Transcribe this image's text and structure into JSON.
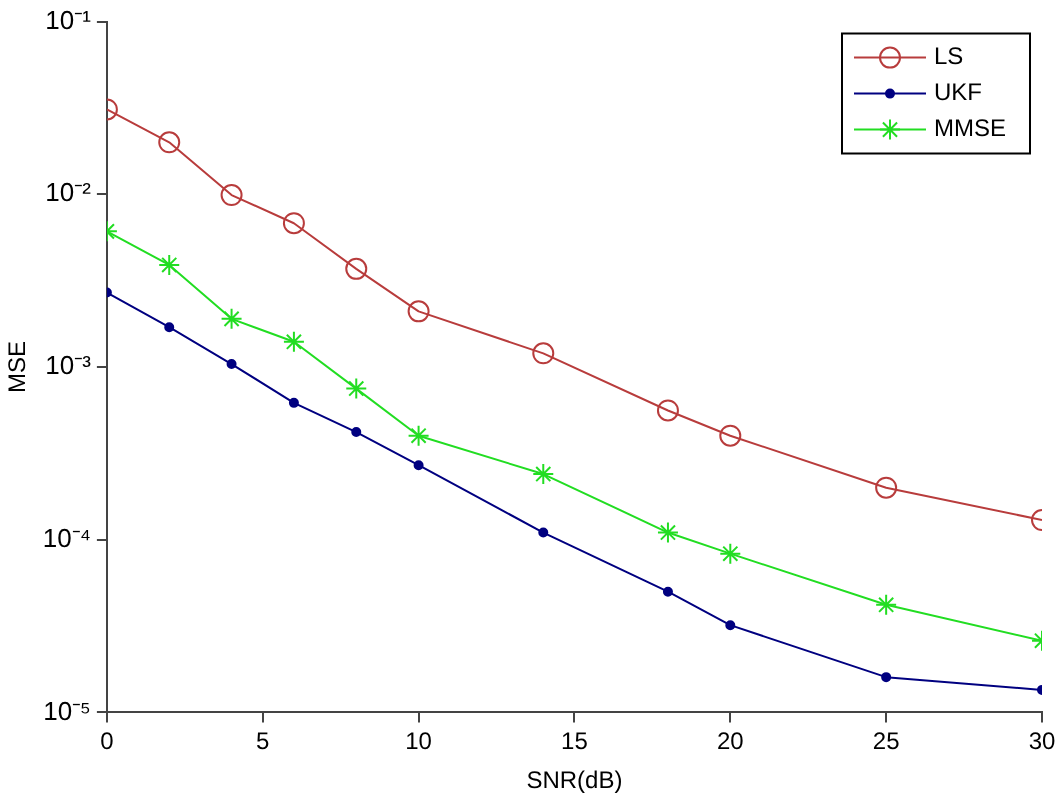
{
  "chart_data": {
    "type": "line",
    "xlabel": "SNR(dB)",
    "ylabel": "MSE",
    "log": "y",
    "x": [
      0,
      2,
      4,
      6,
      8,
      10,
      14,
      18,
      20,
      25,
      30
    ],
    "xlim": [
      0,
      30
    ],
    "xticks": [
      0,
      5,
      10,
      15,
      20,
      25,
      30
    ],
    "ylim": [
      1e-05,
      0.1
    ],
    "yticks": [
      {
        "value": 0.1,
        "label": "10⁻¹"
      },
      {
        "value": 0.01,
        "label": "10⁻²"
      },
      {
        "value": 0.001,
        "label": "10⁻³"
      },
      {
        "value": 0.0001,
        "label": "10⁻⁴"
      },
      {
        "value": 1e-05,
        "label": "10⁻⁵"
      }
    ],
    "grid": false,
    "legend": "top right",
    "line_style": "solid",
    "series": [
      {
        "name": "LS",
        "color": "#b83c3c",
        "marker": "circle",
        "values": [
          0.031,
          0.02,
          0.0099,
          0.0068,
          0.0037,
          0.0021,
          0.0012,
          0.00056,
          0.0004,
          0.0002,
          0.00013
        ]
      },
      {
        "name": "UKF",
        "color": "#000080",
        "marker": "circle",
        "values": [
          0.0027,
          0.0017,
          0.00104,
          0.00062,
          0.00042,
          0.00027,
          0.00011,
          5e-05,
          3.2e-05,
          1.6e-05,
          1.35e-05
        ]
      },
      {
        "name": "MMSE",
        "color": "#22dd22",
        "marker": "cross",
        "values": [
          0.0061,
          0.0039,
          0.0019,
          0.0014,
          0.00075,
          0.0004,
          0.00024,
          0.00011,
          8.3e-05,
          4.2e-05,
          2.6e-05
        ]
      }
    ]
  }
}
